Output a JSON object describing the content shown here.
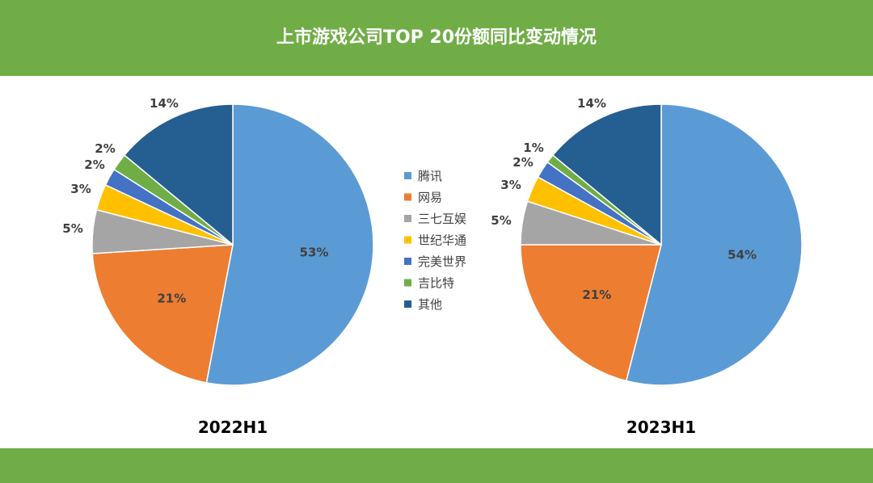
{
  "page": {
    "title": "上市游戏公司TOP 20份额同比变动情况"
  },
  "legend": [
    {
      "label": "腾讯",
      "color": "#5b9bd5"
    },
    {
      "label": "网易",
      "color": "#ed7d31"
    },
    {
      "label": "三七互娱",
      "color": "#a5a5a5"
    },
    {
      "label": "世纪华通",
      "color": "#ffc000"
    },
    {
      "label": "完美世界",
      "color": "#4472c4"
    },
    {
      "label": "吉比特",
      "color": "#70ad47"
    },
    {
      "label": "其他",
      "color": "#255e91"
    }
  ],
  "chart_data": [
    {
      "type": "pie",
      "title": "2022H1",
      "categories": [
        "腾讯",
        "网易",
        "三七互娱",
        "世纪华通",
        "完美世界",
        "吉比特",
        "其他"
      ],
      "values": [
        53,
        21,
        5,
        3,
        2,
        2,
        14
      ],
      "labels": [
        "53%",
        "21%",
        "5%",
        "3%",
        "2%",
        "2%",
        "14%"
      ]
    },
    {
      "type": "pie",
      "title": "2023H1",
      "categories": [
        "腾讯",
        "网易",
        "三七互娱",
        "世纪华通",
        "完美世界",
        "吉比特",
        "其他"
      ],
      "values": [
        54,
        21,
        5,
        3,
        2,
        1,
        14
      ],
      "labels": [
        "54%",
        "21%",
        "5%",
        "3%",
        "2%",
        "1%",
        "14%"
      ]
    }
  ]
}
